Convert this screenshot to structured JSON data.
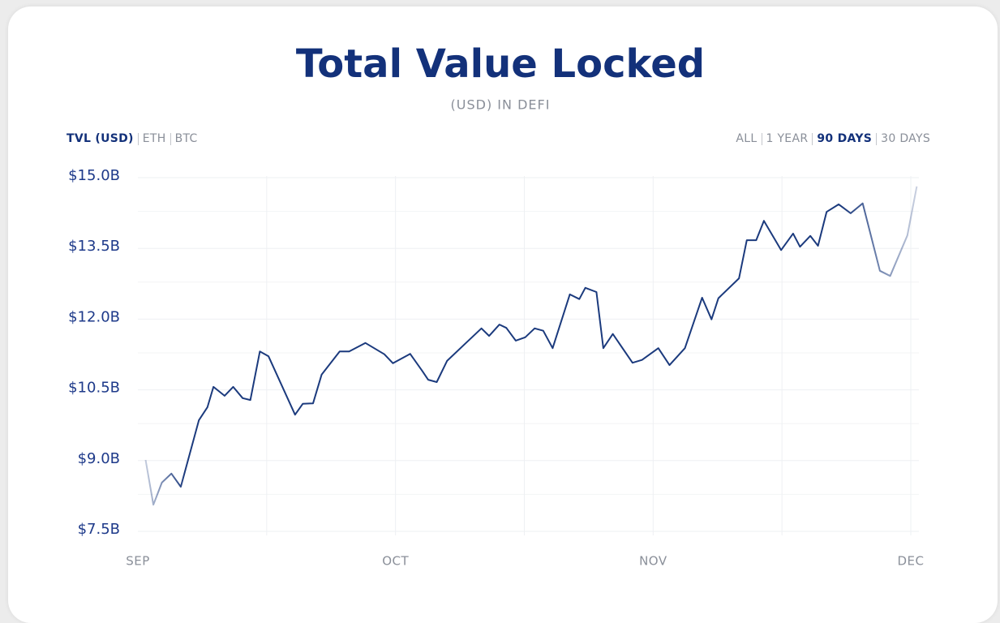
{
  "chart_data": {
    "type": "line",
    "title": "Total Value Locked",
    "subtitle": "(USD) IN DEFI",
    "x": [
      0.9,
      1.8,
      2.8,
      3.9,
      5.0,
      7.1,
      8.1,
      8.8,
      10.1,
      11.1,
      12.2,
      13.1,
      14.2,
      15.2,
      18.3,
      19.2,
      20.4,
      21.4,
      23.5,
      24.6,
      26.5,
      28.7,
      29.7,
      31.7,
      33.1,
      33.8,
      34.8,
      36.0,
      38.2,
      40.0,
      40.9,
      42.1,
      42.9,
      44.0,
      45.1,
      46.2,
      47.2,
      48.3,
      50.3,
      51.4,
      52.1,
      53.4,
      54.2,
      55.3,
      57.6,
      58.7,
      60.6,
      61.9,
      63.7,
      65.7,
      66.8,
      67.6,
      70.0,
      70.9,
      72.0,
      72.9,
      74.9,
      76.3,
      77.1,
      78.3,
      79.2,
      80.2,
      81.6,
      83.0,
      84.4,
      86.4,
      87.6,
      89.6,
      90.7
    ],
    "series": [
      {
        "name": "TVL (USD)",
        "color": "#1b3a7d",
        "values": [
          8.98,
          8.03,
          8.5,
          8.69,
          8.41,
          9.82,
          10.1,
          10.53,
          10.34,
          10.53,
          10.29,
          10.25,
          11.28,
          11.18,
          9.94,
          10.17,
          10.18,
          10.79,
          11.28,
          11.28,
          11.46,
          11.22,
          11.03,
          11.23,
          10.87,
          10.68,
          10.63,
          11.08,
          11.46,
          11.77,
          11.61,
          11.85,
          11.78,
          11.51,
          11.58,
          11.77,
          11.72,
          11.35,
          12.49,
          12.39,
          12.63,
          12.54,
          11.35,
          11.65,
          11.04,
          11.1,
          11.35,
          10.99,
          11.35,
          12.42,
          11.96,
          12.41,
          12.83,
          13.64,
          13.64,
          14.05,
          13.43,
          13.78,
          13.5,
          13.73,
          13.52,
          14.24,
          14.4,
          14.21,
          14.42,
          12.99,
          12.88,
          13.74,
          14.78
        ]
      }
    ],
    "xlim": [
      0,
      90
    ],
    "xticks": [
      {
        "value": 0,
        "label": "SEP"
      },
      {
        "value": 30,
        "label": "OCT"
      },
      {
        "value": 60,
        "label": "NOV"
      },
      {
        "value": 90,
        "label": "DEC"
      }
    ],
    "xminorticks": [
      15,
      45,
      75
    ],
    "ylim": [
      7.5,
      15
    ],
    "yticks": [
      {
        "value": 15,
        "label": "$15.0B"
      },
      {
        "value": 13.5,
        "label": "$13.5B"
      },
      {
        "value": 12,
        "label": "$12.0B"
      },
      {
        "value": 10.5,
        "label": "$10.5B"
      },
      {
        "value": 9,
        "label": "$9.0B"
      },
      {
        "value": 7.5,
        "label": "$7.5B"
      }
    ],
    "yminorticks": [
      8.25,
      9.75,
      11.25,
      12.75,
      14.25
    ],
    "grid": true
  },
  "tabs_left": [
    {
      "label": "TVL (USD)",
      "active": true
    },
    {
      "label": "ETH",
      "active": false
    },
    {
      "label": "BTC",
      "active": false
    }
  ],
  "tabs_right": [
    {
      "label": "ALL",
      "active": false
    },
    {
      "label": "1 YEAR",
      "active": false
    },
    {
      "label": "90 DAYS",
      "active": true
    },
    {
      "label": "30 DAYS",
      "active": false
    }
  ]
}
